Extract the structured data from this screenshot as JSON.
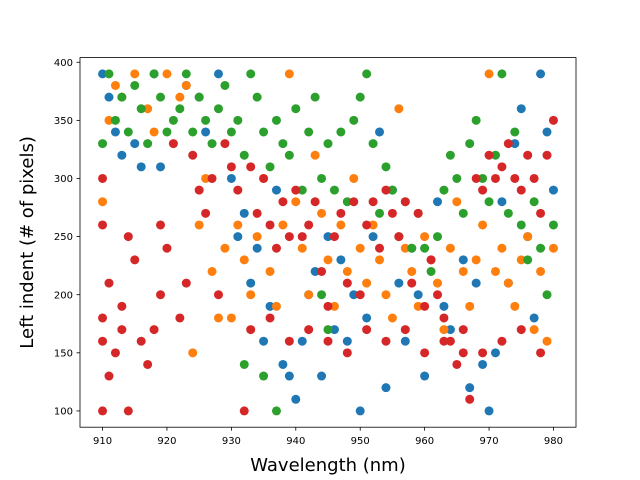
{
  "chart_data": {
    "type": "scatter",
    "title": "",
    "xlabel": "Wavelength (nm)",
    "ylabel": "Left indent (# of pixels)",
    "xlim": [
      906.5,
      983.5
    ],
    "ylim": [
      86,
      404
    ],
    "xticks": [
      910,
      920,
      930,
      940,
      950,
      960,
      970,
      980
    ],
    "yticks": [
      100,
      150,
      200,
      250,
      300,
      350,
      400
    ],
    "grid": false,
    "legend": "none",
    "series_colors": [
      "#1f77b4",
      "#ff7f0e",
      "#2ca02c",
      "#d62728"
    ],
    "series": [
      {
        "color": "#1f77b4",
        "points": [
          [
            910,
            390
          ],
          [
            911,
            370
          ],
          [
            912,
            340
          ],
          [
            913,
            320
          ],
          [
            915,
            330
          ],
          [
            916,
            310
          ],
          [
            918,
            390
          ],
          [
            919,
            310
          ],
          [
            923,
            380
          ],
          [
            925,
            370
          ],
          [
            926,
            340
          ],
          [
            928,
            390
          ],
          [
            930,
            300
          ],
          [
            931,
            250
          ],
          [
            932,
            270
          ],
          [
            933,
            210
          ],
          [
            934,
            240
          ],
          [
            935,
            160
          ],
          [
            936,
            190
          ],
          [
            937,
            290
          ],
          [
            938,
            140
          ],
          [
            939,
            130
          ],
          [
            940,
            110
          ],
          [
            941,
            160
          ],
          [
            942,
            200
          ],
          [
            943,
            220
          ],
          [
            944,
            130
          ],
          [
            945,
            250
          ],
          [
            946,
            170
          ],
          [
            947,
            230
          ],
          [
            948,
            160
          ],
          [
            949,
            200
          ],
          [
            950,
            100
          ],
          [
            951,
            180
          ],
          [
            952,
            250
          ],
          [
            953,
            340
          ],
          [
            954,
            120
          ],
          [
            955,
            290
          ],
          [
            956,
            210
          ],
          [
            957,
            160
          ],
          [
            958,
            240
          ],
          [
            959,
            200
          ],
          [
            960,
            130
          ],
          [
            962,
            280
          ],
          [
            963,
            190
          ],
          [
            964,
            170
          ],
          [
            966,
            230
          ],
          [
            967,
            120
          ],
          [
            968,
            210
          ],
          [
            969,
            140
          ],
          [
            970,
            100
          ],
          [
            971,
            150
          ],
          [
            972,
            280
          ],
          [
            973,
            210
          ],
          [
            974,
            330
          ],
          [
            975,
            360
          ],
          [
            976,
            250
          ],
          [
            977,
            180
          ],
          [
            978,
            390
          ],
          [
            979,
            340
          ],
          [
            980,
            290
          ]
        ]
      },
      {
        "color": "#ff7f0e",
        "points": [
          [
            910,
            280
          ],
          [
            911,
            350
          ],
          [
            912,
            380
          ],
          [
            913,
            370
          ],
          [
            915,
            390
          ],
          [
            917,
            360
          ],
          [
            918,
            340
          ],
          [
            920,
            390
          ],
          [
            922,
            370
          ],
          [
            923,
            380
          ],
          [
            924,
            150
          ],
          [
            925,
            260
          ],
          [
            926,
            300
          ],
          [
            927,
            220
          ],
          [
            928,
            180
          ],
          [
            929,
            240
          ],
          [
            930,
            180
          ],
          [
            931,
            260
          ],
          [
            932,
            230
          ],
          [
            933,
            200
          ],
          [
            934,
            250
          ],
          [
            935,
            300
          ],
          [
            936,
            220
          ],
          [
            937,
            190
          ],
          [
            938,
            260
          ],
          [
            939,
            390
          ],
          [
            940,
            280
          ],
          [
            941,
            240
          ],
          [
            942,
            200
          ],
          [
            943,
            320
          ],
          [
            944,
            270
          ],
          [
            945,
            230
          ],
          [
            946,
            190
          ],
          [
            947,
            260
          ],
          [
            948,
            220
          ],
          [
            949,
            300
          ],
          [
            950,
            240
          ],
          [
            951,
            210
          ],
          [
            952,
            260
          ],
          [
            953,
            230
          ],
          [
            954,
            200
          ],
          [
            955,
            180
          ],
          [
            956,
            360
          ],
          [
            957,
            240
          ],
          [
            958,
            220
          ],
          [
            959,
            190
          ],
          [
            960,
            250
          ],
          [
            961,
            230
          ],
          [
            962,
            210
          ],
          [
            963,
            170
          ],
          [
            964,
            240
          ],
          [
            965,
            280
          ],
          [
            966,
            220
          ],
          [
            967,
            190
          ],
          [
            968,
            230
          ],
          [
            969,
            260
          ],
          [
            970,
            390
          ],
          [
            971,
            220
          ],
          [
            972,
            240
          ],
          [
            973,
            210
          ],
          [
            974,
            190
          ],
          [
            975,
            230
          ],
          [
            976,
            250
          ],
          [
            977,
            170
          ],
          [
            978,
            220
          ],
          [
            979,
            160
          ],
          [
            980,
            240
          ]
        ]
      },
      {
        "color": "#2ca02c",
        "points": [
          [
            910,
            330
          ],
          [
            911,
            390
          ],
          [
            912,
            350
          ],
          [
            913,
            370
          ],
          [
            914,
            340
          ],
          [
            915,
            380
          ],
          [
            916,
            360
          ],
          [
            917,
            330
          ],
          [
            918,
            390
          ],
          [
            919,
            370
          ],
          [
            920,
            340
          ],
          [
            921,
            350
          ],
          [
            922,
            360
          ],
          [
            923,
            390
          ],
          [
            924,
            340
          ],
          [
            925,
            370
          ],
          [
            926,
            350
          ],
          [
            927,
            330
          ],
          [
            928,
            360
          ],
          [
            929,
            380
          ],
          [
            930,
            340
          ],
          [
            931,
            350
          ],
          [
            932,
            320
          ],
          [
            933,
            390
          ],
          [
            934,
            370
          ],
          [
            935,
            340
          ],
          [
            936,
            310
          ],
          [
            937,
            350
          ],
          [
            938,
            330
          ],
          [
            939,
            320
          ],
          [
            940,
            360
          ],
          [
            941,
            290
          ],
          [
            942,
            340
          ],
          [
            943,
            370
          ],
          [
            944,
            300
          ],
          [
            945,
            330
          ],
          [
            946,
            290
          ],
          [
            947,
            340
          ],
          [
            948,
            280
          ],
          [
            949,
            350
          ],
          [
            950,
            370
          ],
          [
            951,
            390
          ],
          [
            952,
            330
          ],
          [
            953,
            270
          ],
          [
            954,
            310
          ],
          [
            955,
            290
          ],
          [
            956,
            250
          ],
          [
            957,
            280
          ],
          [
            958,
            240
          ],
          [
            959,
            270
          ],
          [
            960,
            240
          ],
          [
            961,
            220
          ],
          [
            962,
            250
          ],
          [
            963,
            290
          ],
          [
            964,
            320
          ],
          [
            965,
            300
          ],
          [
            966,
            270
          ],
          [
            967,
            330
          ],
          [
            968,
            350
          ],
          [
            969,
            300
          ],
          [
            970,
            280
          ],
          [
            971,
            320
          ],
          [
            972,
            390
          ],
          [
            973,
            270
          ],
          [
            974,
            340
          ],
          [
            975,
            260
          ],
          [
            976,
            230
          ],
          [
            977,
            280
          ],
          [
            978,
            240
          ],
          [
            979,
            200
          ],
          [
            980,
            260
          ],
          [
            935,
            130
          ],
          [
            937,
            100
          ],
          [
            944,
            200
          ],
          [
            945,
            170
          ],
          [
            932,
            140
          ]
        ]
      },
      {
        "color": "#d62728",
        "points": [
          [
            910,
            300
          ],
          [
            910,
            260
          ],
          [
            910,
            180
          ],
          [
            910,
            160
          ],
          [
            910,
            100
          ],
          [
            911,
            130
          ],
          [
            911,
            210
          ],
          [
            912,
            150
          ],
          [
            913,
            170
          ],
          [
            913,
            190
          ],
          [
            914,
            250
          ],
          [
            914,
            100
          ],
          [
            915,
            230
          ],
          [
            916,
            160
          ],
          [
            917,
            140
          ],
          [
            918,
            170
          ],
          [
            919,
            200
          ],
          [
            919,
            260
          ],
          [
            920,
            240
          ],
          [
            921,
            330
          ],
          [
            922,
            180
          ],
          [
            923,
            210
          ],
          [
            924,
            320
          ],
          [
            925,
            290
          ],
          [
            926,
            270
          ],
          [
            927,
            300
          ],
          [
            928,
            200
          ],
          [
            929,
            330
          ],
          [
            930,
            310
          ],
          [
            931,
            290
          ],
          [
            932,
            100
          ],
          [
            933,
            310
          ],
          [
            934,
            270
          ],
          [
            935,
            300
          ],
          [
            936,
            260
          ],
          [
            937,
            240
          ],
          [
            938,
            280
          ],
          [
            939,
            250
          ],
          [
            940,
            290
          ],
          [
            941,
            250
          ],
          [
            942,
            260
          ],
          [
            943,
            280
          ],
          [
            944,
            220
          ],
          [
            945,
            190
          ],
          [
            946,
            250
          ],
          [
            947,
            270
          ],
          [
            948,
            210
          ],
          [
            949,
            280
          ],
          [
            950,
            200
          ],
          [
            951,
            260
          ],
          [
            952,
            280
          ],
          [
            953,
            240
          ],
          [
            954,
            290
          ],
          [
            955,
            270
          ],
          [
            956,
            250
          ],
          [
            957,
            280
          ],
          [
            958,
            210
          ],
          [
            959,
            270
          ],
          [
            960,
            190
          ],
          [
            961,
            230
          ],
          [
            962,
            200
          ],
          [
            963,
            180
          ],
          [
            964,
            160
          ],
          [
            965,
            140
          ],
          [
            966,
            170
          ],
          [
            967,
            110
          ],
          [
            968,
            300
          ],
          [
            969,
            290
          ],
          [
            970,
            320
          ],
          [
            971,
            300
          ],
          [
            972,
            310
          ],
          [
            973,
            330
          ],
          [
            974,
            300
          ],
          [
            975,
            290
          ],
          [
            976,
            320
          ],
          [
            977,
            300
          ],
          [
            978,
            270
          ],
          [
            979,
            320
          ],
          [
            980,
            350
          ],
          [
            933,
            170
          ],
          [
            936,
            180
          ],
          [
            939,
            160
          ],
          [
            942,
            170
          ],
          [
            945,
            160
          ],
          [
            948,
            150
          ],
          [
            951,
            170
          ],
          [
            954,
            160
          ],
          [
            957,
            170
          ],
          [
            960,
            150
          ],
          [
            963,
            160
          ],
          [
            966,
            150
          ],
          [
            969,
            150
          ],
          [
            972,
            160
          ],
          [
            975,
            170
          ],
          [
            978,
            150
          ]
        ]
      }
    ]
  }
}
